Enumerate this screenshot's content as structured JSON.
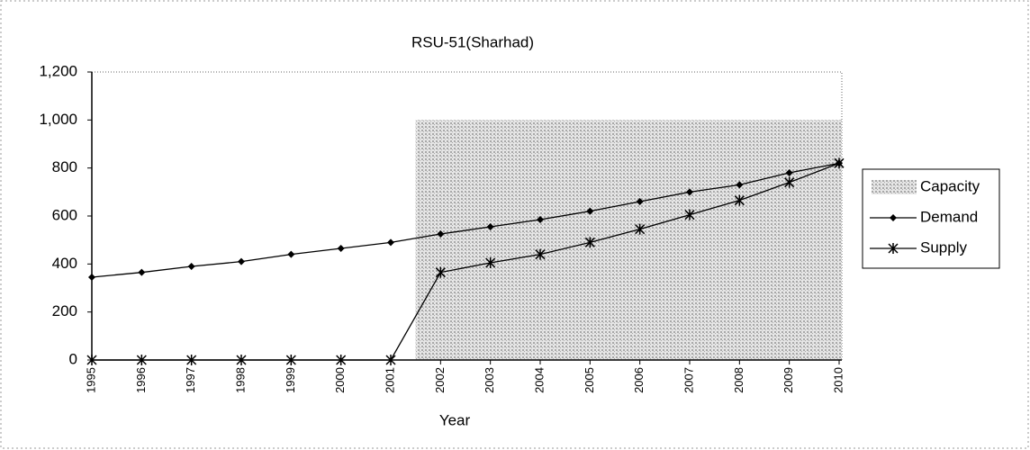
{
  "chart_data": {
    "type": "line",
    "title": "RSU-51(Sharhad)",
    "x_label": "Year",
    "categories": [
      "1995",
      "1996",
      "1997",
      "1998",
      "1999",
      "2000",
      "2001",
      "2002",
      "2003",
      "2004",
      "2005",
      "2006",
      "2007",
      "2008",
      "2009",
      "2010"
    ],
    "series": [
      {
        "name": "Capacity",
        "type": "bar",
        "color": "#a8a8a8",
        "values": [
          null,
          null,
          null,
          null,
          null,
          null,
          null,
          1000,
          1000,
          1000,
          1000,
          1000,
          1000,
          1000,
          1000,
          1000
        ]
      },
      {
        "name": "Demand",
        "type": "line",
        "marker": "diamond",
        "color": "#000000",
        "values": [
          345,
          365,
          390,
          410,
          440,
          465,
          490,
          525,
          555,
          585,
          620,
          660,
          700,
          730,
          780,
          820
        ]
      },
      {
        "name": "Supply",
        "type": "line",
        "marker": "star",
        "color": "#000000",
        "values": [
          0,
          0,
          0,
          0,
          0,
          0,
          0,
          365,
          405,
          440,
          490,
          545,
          605,
          665,
          740,
          820
        ]
      }
    ],
    "ylim": [
      0,
      1200
    ],
    "yticks": [
      0,
      200,
      400,
      600,
      800,
      {
        "value": 1000,
        "label": "1,000"
      },
      {
        "value": 1200,
        "label": "1,200"
      }
    ],
    "legend": "right"
  }
}
